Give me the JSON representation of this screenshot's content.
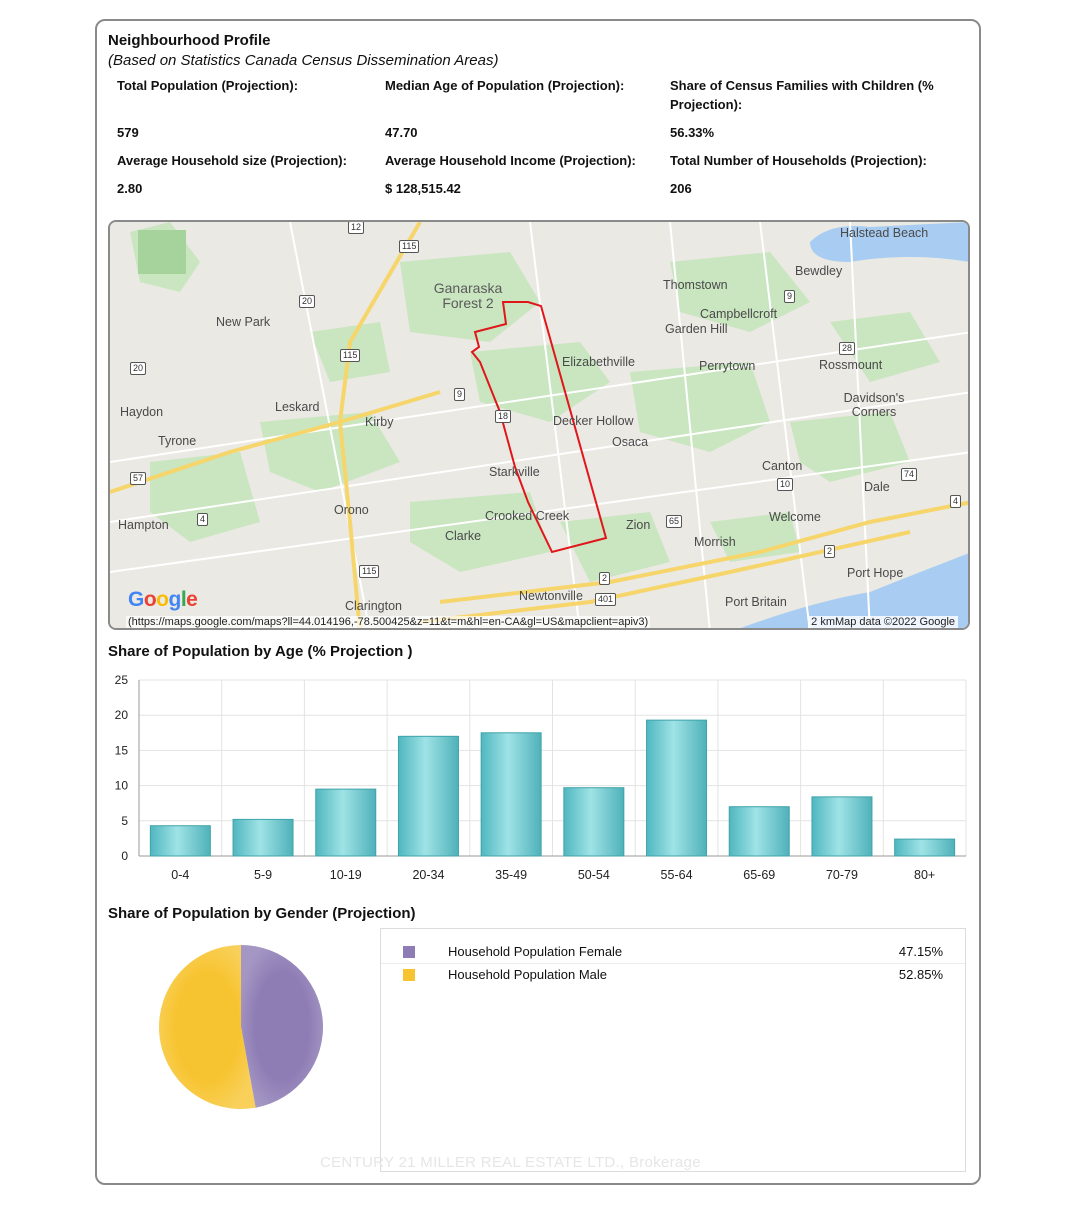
{
  "header": {
    "title": "Neighbourhood Profile",
    "subtitle": "(Based on Statistics Canada Census Dissemination Areas)"
  },
  "stats": [
    {
      "label": "Total Population (Projection):",
      "value": "579"
    },
    {
      "label": "Median Age of Population (Projection):",
      "value": "47.70"
    },
    {
      "label": "Share of Census Families with Children (% Projection):",
      "value": "56.33%"
    },
    {
      "label": "Average Household size (Projection):",
      "value": "2.80"
    },
    {
      "label": "Average Household Income (Projection):",
      "value": "$ 128,515.42"
    },
    {
      "label": "Total Number of Households (Projection):",
      "value": "206"
    }
  ],
  "map": {
    "places": [
      "Halstead Beach",
      "Bewdley",
      "Thomstown",
      "Campbellcroft",
      "Garden Hill",
      "Ganaraska Forest 2",
      "New Park",
      "Elizabethville",
      "Perrytown",
      "Rossmount",
      "Haydon",
      "Leskard",
      "Kirby",
      "Decker Hollow",
      "Davidson's Corners",
      "Tyrone",
      "Osaca",
      "Canton",
      "Starkville",
      "Dale",
      "Orono",
      "Crooked Creek",
      "Welcome",
      "Hampton",
      "Zion",
      "Clarke",
      "Morrish",
      "Port Hope",
      "Newtonville",
      "Clarington",
      "Port Britain"
    ],
    "roads": [
      "12",
      "115",
      "20",
      "9",
      "115",
      "20",
      "28",
      "9",
      "18",
      "57",
      "10",
      "74",
      "4",
      "4",
      "65",
      "2",
      "115",
      "2",
      "401"
    ],
    "logo": "Google",
    "url": "(https://maps.google.com/maps?ll=44.014196,-78.500425&z=11&t=m&hl=en-CA&gl=US&mapclient=apiv3)",
    "credit": "2 kmMap data ©2022 Google",
    "colors": {
      "boundary": "#e0161b",
      "water": "#a9cdf2",
      "forest": "#c7e6bf",
      "highway": "#f6d56b"
    }
  },
  "age_section": {
    "title": "Share of Population by Age (% Projection )"
  },
  "gender_section": {
    "title": "Share of Population by Gender (Projection)"
  },
  "chart_data": [
    {
      "type": "bar",
      "title": "Share of Population by Age (% Projection )",
      "categories": [
        "0-4",
        "5-9",
        "10-19",
        "20-34",
        "35-49",
        "50-54",
        "55-64",
        "65-69",
        "70-79",
        "80+"
      ],
      "values": [
        4.3,
        5.2,
        9.5,
        17.0,
        17.5,
        9.7,
        19.3,
        7.0,
        8.4,
        2.4
      ],
      "yticks": [
        "0",
        "5",
        "10",
        "15",
        "20",
        "25"
      ],
      "ylim": [
        0,
        25
      ],
      "grid": true,
      "color": "#6fcfd4"
    },
    {
      "type": "pie",
      "title": "Share of Population by Gender (Projection)",
      "slices": [
        {
          "name": "Household Population Female",
          "value": 47.15,
          "label": "47.15%",
          "color": "#8e7db5"
        },
        {
          "name": "Household Population Male",
          "value": 52.85,
          "label": "52.85%",
          "color": "#f7c431"
        }
      ],
      "legend": "right"
    }
  ],
  "watermark": "CENTURY 21 MILLER REAL ESTATE LTD., Brokerage"
}
